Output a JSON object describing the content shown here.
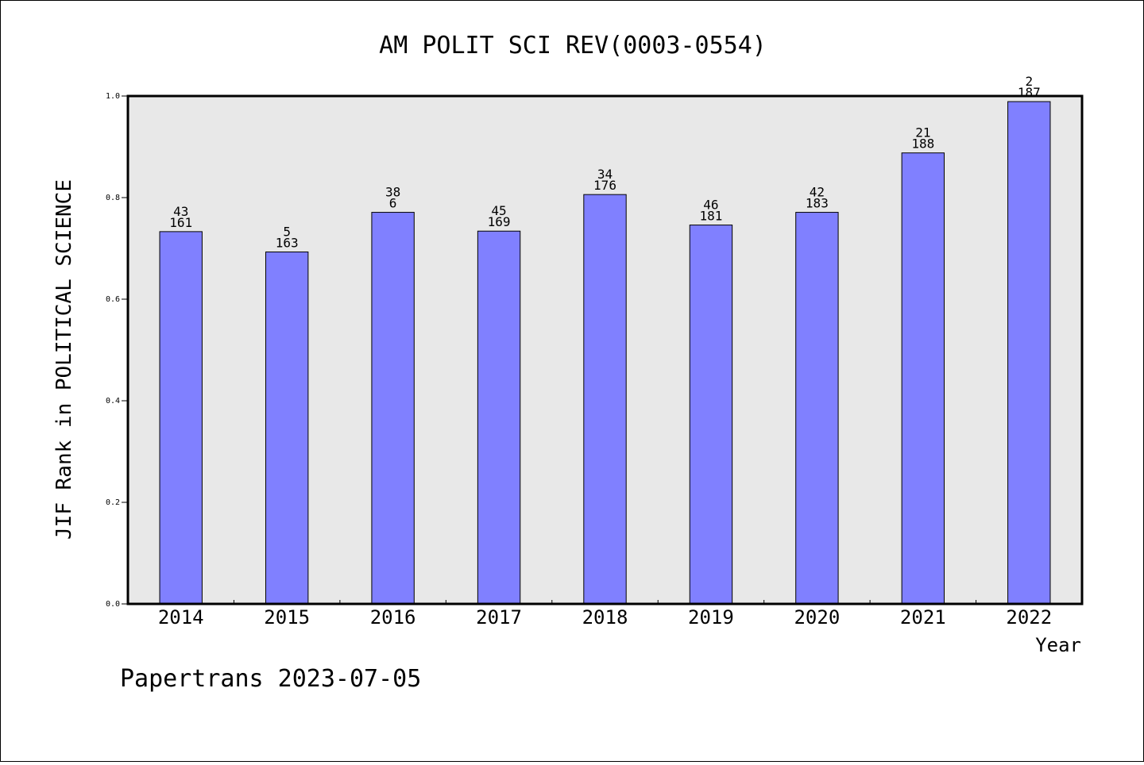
{
  "chart_data": {
    "type": "bar",
    "title": "AM POLIT SCI REV(0003-0554)",
    "xlabel": "Year",
    "ylabel": "JIF Rank in POLITICAL SCIENCE",
    "ylim": [
      0.0,
      1.0
    ],
    "yticks": [
      "0.0",
      "0.2",
      "0.4",
      "0.6",
      "0.8",
      "1.0"
    ],
    "grid": false,
    "categories": [
      "2014",
      "2015",
      "2016",
      "2017",
      "2018",
      "2019",
      "2020",
      "2021",
      "2022"
    ],
    "values": [
      0.733,
      0.693,
      0.771,
      0.734,
      0.806,
      0.746,
      0.771,
      0.888,
      0.989
    ],
    "rank_labels": [
      "43",
      "5",
      "38",
      "45",
      "34",
      "46",
      "42",
      "21",
      "2"
    ],
    "total_labels": [
      "161",
      "163",
      "6",
      "169",
      "176",
      "181",
      "183",
      "188",
      "187"
    ],
    "colors": {
      "bar": "#8080ff",
      "plot_background": "#e8e8e8",
      "axis": "#000000"
    }
  },
  "footer": {
    "text": "Papertrans 2023-07-05"
  }
}
